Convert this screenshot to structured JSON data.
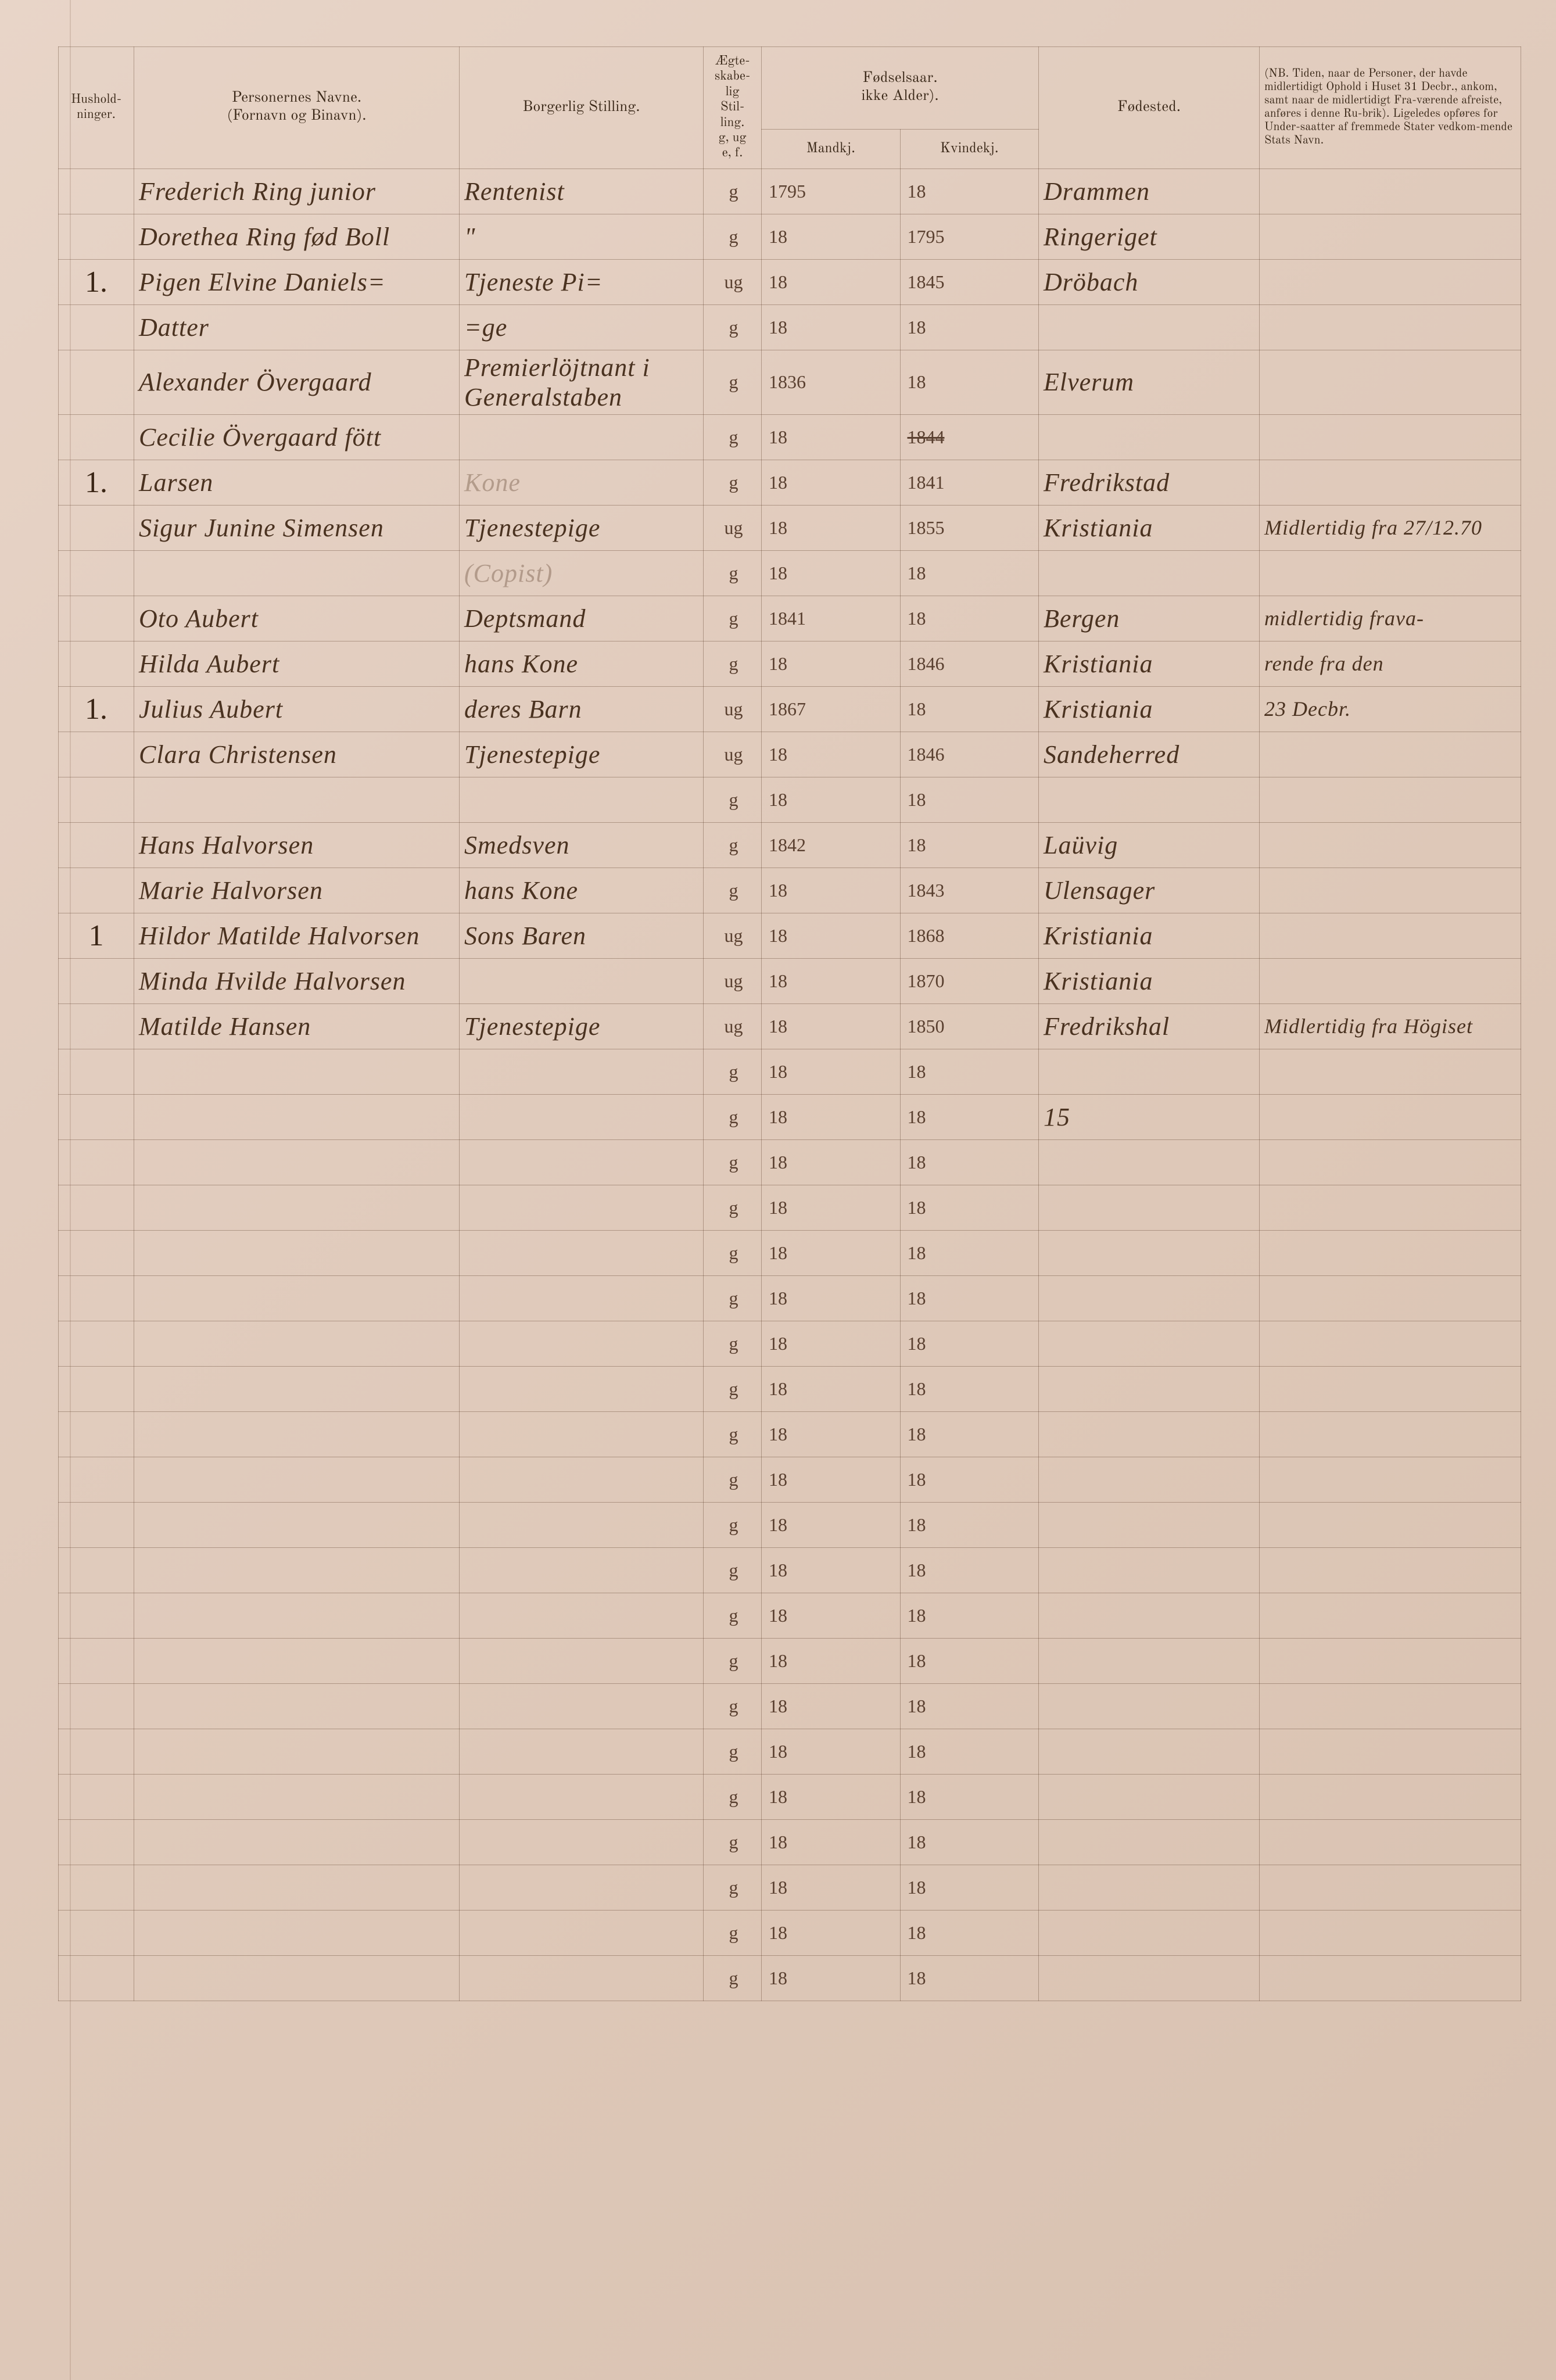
{
  "headers": {
    "husholdninger": "Hushold-\nninger.",
    "personernes_navne": "Personernes Navne.\n(Fornavn og Binavn).",
    "borgerlig_stilling": "Borgerlig Stilling.",
    "egteskabelig": "Ægte-\nskabe-\nlig\nStil-\nling.\ng, ug\ne, f.",
    "fodselsaar": "Fødselsaar.\nikke Alder).",
    "mandkj": "Mandkj.",
    "kvindkj": "Kvindekj.",
    "fodested": "Fødested.",
    "nb": "(NB. Tiden, naar de Personer, der havde midlertidigt Ophold i Huset 31 Decbr., ankom, samt naar de midlertidigt Fra-værende afreiste, anføres i denne Ru-brik). Ligeledes opføres for Under-saatter af fremmede Stater vedkom-mende Stats Navn."
  },
  "rows": [
    {
      "hushold": "",
      "navn": "Frederich Ring junior",
      "stilling": "Rentenist",
      "egte": "g",
      "mandkj": "1795",
      "kvindkj": "18",
      "fodested": "Drammen",
      "nb": ""
    },
    {
      "hushold": "",
      "navn": "Dorethea Ring fød Boll",
      "stilling": "\"",
      "egte": "g",
      "mandkj": "18",
      "kvindkj": "1795",
      "fodested": "Ringeriget",
      "nb": ""
    },
    {
      "hushold": "1.",
      "navn": "Pigen Elvine Daniels=",
      "stilling": "Tjeneste Pi=",
      "egte": "ug",
      "mandkj": "18",
      "kvindkj": "1845",
      "fodested": "Dröbach",
      "nb": ""
    },
    {
      "hushold": "",
      "navn": "Datter",
      "stilling": "=ge",
      "egte": "g",
      "mandkj": "18",
      "kvindkj": "18",
      "fodested": "",
      "nb": ""
    },
    {
      "hushold": "",
      "navn": "Alexander Övergaard",
      "stilling": "Premierlöjtnant i Generalstaben",
      "egte": "g",
      "mandkj": "1836",
      "kvindkj": "18",
      "fodested": "Elverum",
      "nb": ""
    },
    {
      "hushold": "",
      "navn": "Cecilie Övergaard fött",
      "stilling": "",
      "egte": "g",
      "mandkj": "18",
      "kvindkj": "1844",
      "fodested": "",
      "nb": "",
      "strike_kvindkj": true
    },
    {
      "hushold": "1.",
      "navn": "Larsen",
      "stilling": "Kone",
      "egte": "g",
      "mandkj": "18",
      "kvindkj": "1841",
      "fodested": "Fredrikstad",
      "nb": "",
      "faded_stilling": true
    },
    {
      "hushold": "",
      "navn": "Sigur Junine Simensen",
      "stilling": "Tjenestepige",
      "egte": "ug",
      "mandkj": "18",
      "kvindkj": "1855",
      "fodested": "Kristiania",
      "nb": "Midlertidig fra 27/12.70"
    },
    {
      "hushold": "",
      "navn": "",
      "stilling": "(Copist)",
      "egte": "g",
      "mandkj": "18",
      "kvindkj": "18",
      "fodested": "",
      "nb": "",
      "faded_stilling": true
    },
    {
      "hushold": "",
      "navn": "Oto Aubert",
      "stilling": "Deptsmand",
      "egte": "g",
      "mandkj": "1841",
      "kvindkj": "18",
      "fodested": "Bergen",
      "nb": "midlertidig frava-"
    },
    {
      "hushold": "",
      "navn": "Hilda Aubert",
      "stilling": "hans Kone",
      "egte": "g",
      "mandkj": "18",
      "kvindkj": "1846",
      "fodested": "Kristiania",
      "nb": "rende fra den"
    },
    {
      "hushold": "1.",
      "navn": "Julius Aubert",
      "stilling": "deres Barn",
      "egte": "ug",
      "mandkj": "1867",
      "kvindkj": "18",
      "fodested": "Kristiania",
      "nb": "23 Decbr."
    },
    {
      "hushold": "",
      "navn": "Clara Christensen",
      "stilling": "Tjenestepige",
      "egte": "ug",
      "mandkj": "18",
      "kvindkj": "1846",
      "fodested": "Sandeherred",
      "nb": ""
    },
    {
      "hushold": "",
      "navn": "",
      "stilling": "",
      "egte": "g",
      "mandkj": "18",
      "kvindkj": "18",
      "fodested": "",
      "nb": ""
    },
    {
      "hushold": "",
      "navn": "Hans Halvorsen",
      "stilling": "Smedsven",
      "egte": "g",
      "mandkj": "1842",
      "kvindkj": "18",
      "fodested": "Laüvig",
      "nb": ""
    },
    {
      "hushold": "",
      "navn": "Marie Halvorsen",
      "stilling": "hans Kone",
      "egte": "g",
      "mandkj": "18",
      "kvindkj": "1843",
      "fodested": "Ulensager",
      "nb": ""
    },
    {
      "hushold": "1",
      "navn": "Hildor Matilde Halvorsen",
      "stilling": "Sons Baren",
      "egte": "ug",
      "mandkj": "18",
      "kvindkj": "1868",
      "fodested": "Kristiania",
      "nb": ""
    },
    {
      "hushold": "",
      "navn": "Minda Hvilde Halvorsen",
      "stilling": "",
      "egte": "ug",
      "mandkj": "18",
      "kvindkj": "1870",
      "fodested": "Kristiania",
      "nb": ""
    },
    {
      "hushold": "",
      "navn": "Matilde Hansen",
      "stilling": "Tjenestepige",
      "egte": "ug",
      "mandkj": "18",
      "kvindkj": "1850",
      "fodested": "Fredrikshal",
      "nb": "Midlertidig fra Högiset"
    },
    {
      "hushold": "",
      "navn": "",
      "stilling": "",
      "egte": "g",
      "mandkj": "18",
      "kvindkj": "18",
      "fodested": "",
      "nb": ""
    },
    {
      "hushold": "",
      "navn": "",
      "stilling": "",
      "egte": "g",
      "mandkj": "18",
      "kvindkj": "18",
      "fodested": "15",
      "nb": ""
    },
    {
      "hushold": "",
      "navn": "",
      "stilling": "",
      "egte": "g",
      "mandkj": "18",
      "kvindkj": "18",
      "fodested": "",
      "nb": ""
    },
    {
      "hushold": "",
      "navn": "",
      "stilling": "",
      "egte": "g",
      "mandkj": "18",
      "kvindkj": "18",
      "fodested": "",
      "nb": ""
    },
    {
      "hushold": "",
      "navn": "",
      "stilling": "",
      "egte": "g",
      "mandkj": "18",
      "kvindkj": "18",
      "fodested": "",
      "nb": ""
    },
    {
      "hushold": "",
      "navn": "",
      "stilling": "",
      "egte": "g",
      "mandkj": "18",
      "kvindkj": "18",
      "fodested": "",
      "nb": ""
    },
    {
      "hushold": "",
      "navn": "",
      "stilling": "",
      "egte": "g",
      "mandkj": "18",
      "kvindkj": "18",
      "fodested": "",
      "nb": ""
    },
    {
      "hushold": "",
      "navn": "",
      "stilling": "",
      "egte": "g",
      "mandkj": "18",
      "kvindkj": "18",
      "fodested": "",
      "nb": ""
    },
    {
      "hushold": "",
      "navn": "",
      "stilling": "",
      "egte": "g",
      "mandkj": "18",
      "kvindkj": "18",
      "fodested": "",
      "nb": ""
    },
    {
      "hushold": "",
      "navn": "",
      "stilling": "",
      "egte": "g",
      "mandkj": "18",
      "kvindkj": "18",
      "fodested": "",
      "nb": ""
    },
    {
      "hushold": "",
      "navn": "",
      "stilling": "",
      "egte": "g",
      "mandkj": "18",
      "kvindkj": "18",
      "fodested": "",
      "nb": ""
    },
    {
      "hushold": "",
      "navn": "",
      "stilling": "",
      "egte": "g",
      "mandkj": "18",
      "kvindkj": "18",
      "fodested": "",
      "nb": ""
    },
    {
      "hushold": "",
      "navn": "",
      "stilling": "",
      "egte": "g",
      "mandkj": "18",
      "kvindkj": "18",
      "fodested": "",
      "nb": ""
    },
    {
      "hushold": "",
      "navn": "",
      "stilling": "",
      "egte": "g",
      "mandkj": "18",
      "kvindkj": "18",
      "fodested": "",
      "nb": ""
    },
    {
      "hushold": "",
      "navn": "",
      "stilling": "",
      "egte": "g",
      "mandkj": "18",
      "kvindkj": "18",
      "fodested": "",
      "nb": ""
    },
    {
      "hushold": "",
      "navn": "",
      "stilling": "",
      "egte": "g",
      "mandkj": "18",
      "kvindkj": "18",
      "fodested": "",
      "nb": ""
    },
    {
      "hushold": "",
      "navn": "",
      "stilling": "",
      "egte": "g",
      "mandkj": "18",
      "kvindkj": "18",
      "fodested": "",
      "nb": ""
    },
    {
      "hushold": "",
      "navn": "",
      "stilling": "",
      "egte": "g",
      "mandkj": "18",
      "kvindkj": "18",
      "fodested": "",
      "nb": ""
    },
    {
      "hushold": "",
      "navn": "",
      "stilling": "",
      "egte": "g",
      "mandkj": "18",
      "kvindkj": "18",
      "fodested": "",
      "nb": ""
    },
    {
      "hushold": "",
      "navn": "",
      "stilling": "",
      "egte": "g",
      "mandkj": "18",
      "kvindkj": "18",
      "fodested": "",
      "nb": ""
    },
    {
      "hushold": "",
      "navn": "",
      "stilling": "",
      "egte": "g",
      "mandkj": "18",
      "kvindkj": "18",
      "fodested": "",
      "nb": ""
    }
  ]
}
